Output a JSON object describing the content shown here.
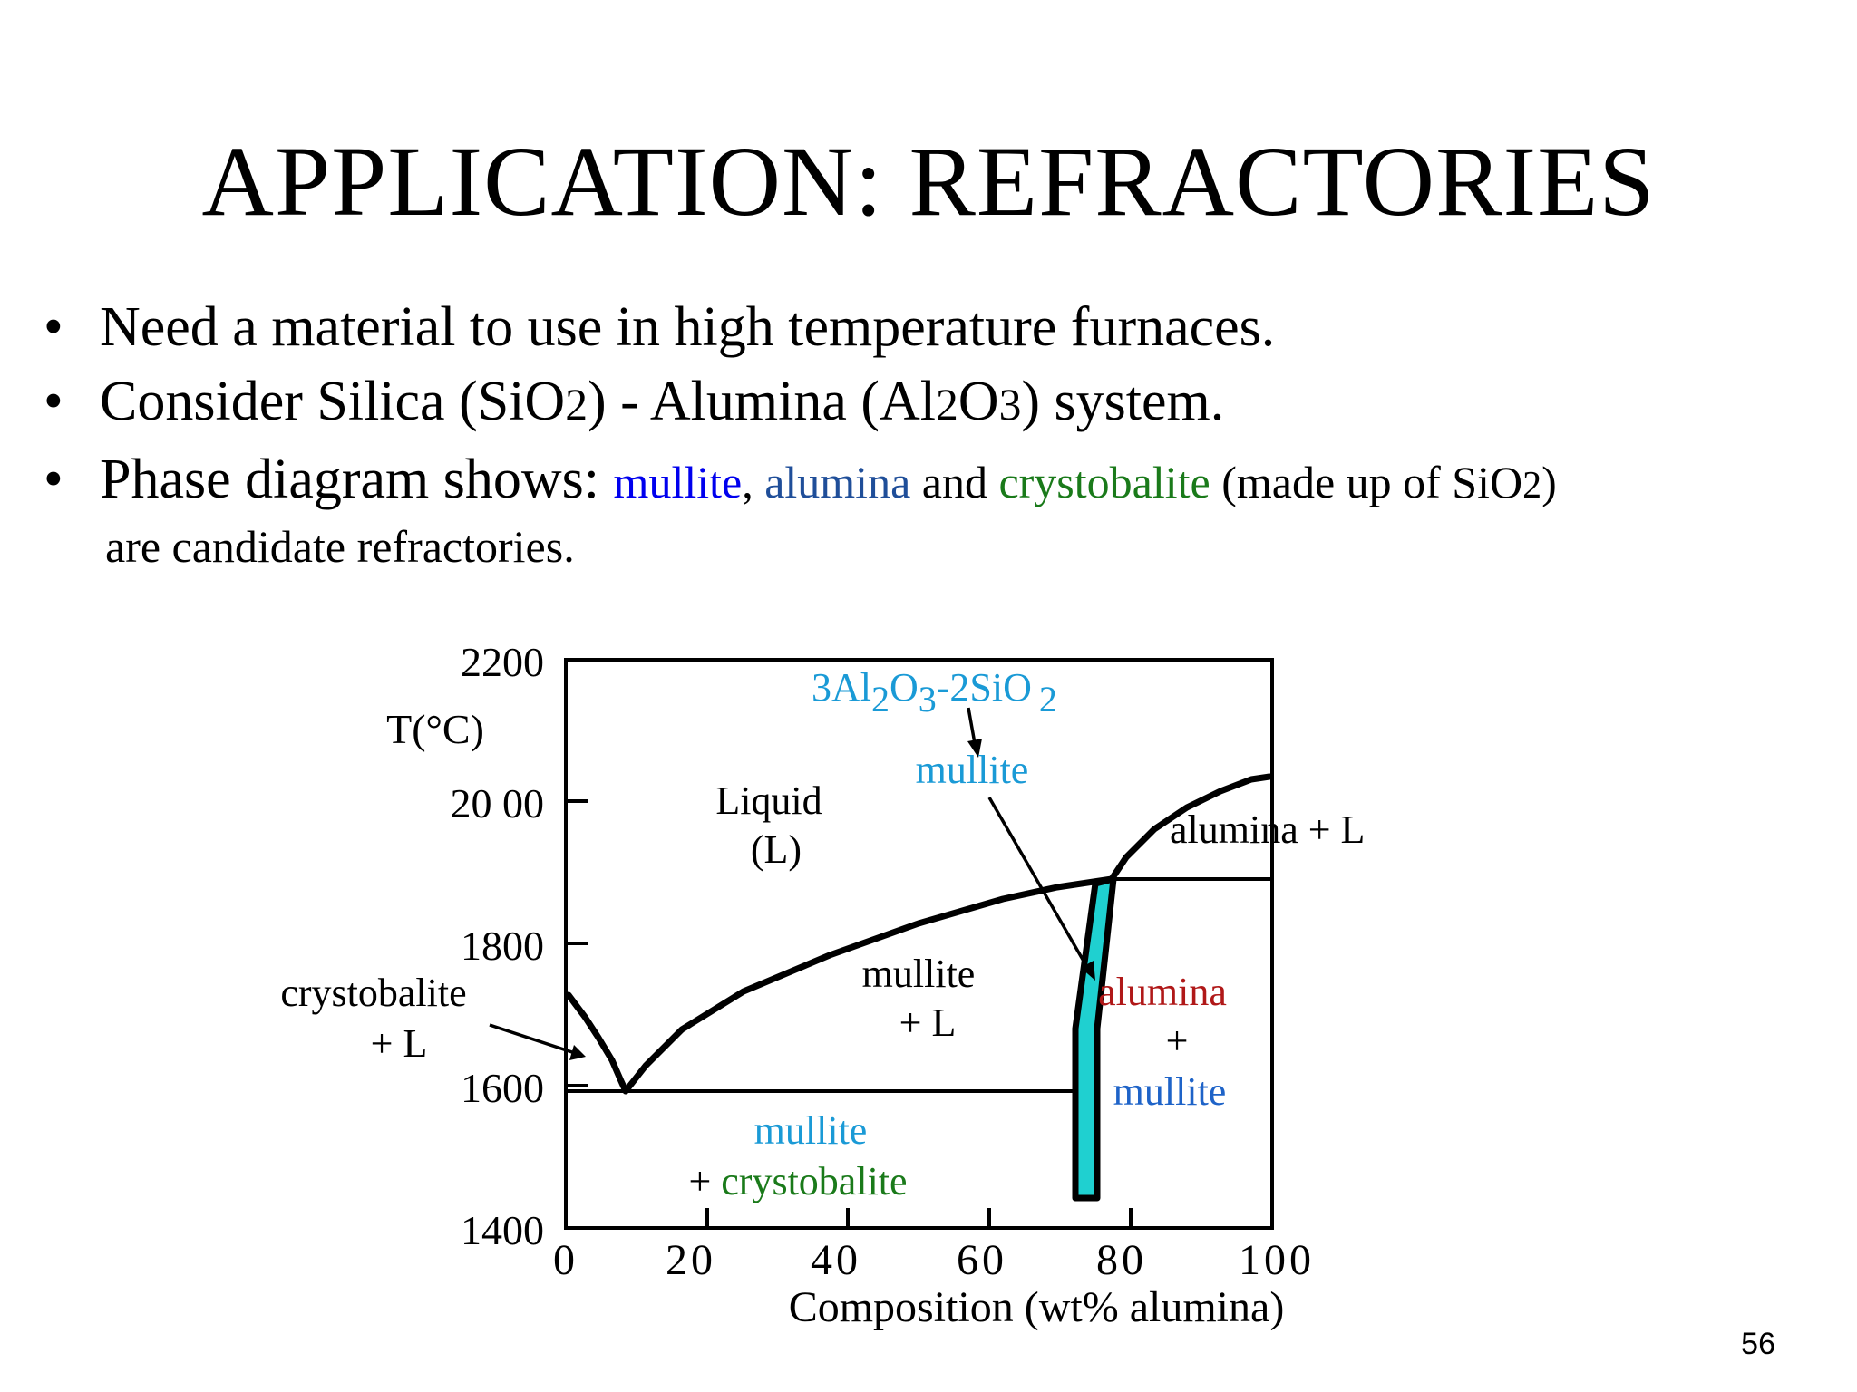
{
  "slide": {
    "title": "APPLICATION:  REFRACTORIES",
    "page_number": "56",
    "bullet_symbol": "•",
    "bullet1": "Need a material to use in high temperature furnaces.",
    "bullet2": {
      "p1": "Consider Silica (SiO",
      "s1": "2",
      "p2": ") - Alumina (Al",
      "s2": "2",
      "p3": "O",
      "s3": "3",
      "p4": ") system."
    },
    "bullet3": {
      "p1": "Phase diagram shows: ",
      "mullite": "mullite",
      "comma": ", ",
      "alumina": "alumina",
      "and": " and ",
      "crystobalite": "crystobalite",
      "p2": " (made up of SiO",
      "s1": "2",
      "p3": ")",
      "cont": "are candidate refractories."
    }
  },
  "colors": {
    "mullite_label": "#0000ee",
    "alumina_label": "#1f4e99",
    "crystobalite_label": "#1a7a1a",
    "diagram_cyan": "#1a9ad6",
    "diagram_blue": "#1e63c8",
    "diagram_red": "#b01818",
    "mullite_region_fill": "#1fd0d0"
  },
  "chart_data": {
    "type": "phase-diagram",
    "xlabel": "Composition (wt% alumina)",
    "ylabel": "T(°C)",
    "xlim": [
      0,
      100
    ],
    "ylim": [
      1400,
      2200
    ],
    "x_ticks": [
      "0",
      "20",
      "40",
      "60",
      "80",
      "100"
    ],
    "y_ticks": [
      "2200",
      "20 00",
      "1800",
      "1600",
      "1400"
    ],
    "phase_boundaries": {
      "crystobalite_liquidus": [
        [
          0,
          1732
        ],
        [
          3,
          1700
        ],
        [
          6,
          1650
        ],
        [
          8,
          1600
        ],
        [
          8.5,
          1587
        ]
      ],
      "mullite_liquidus": [
        [
          8.5,
          1587
        ],
        [
          11,
          1620
        ],
        [
          17,
          1672
        ],
        [
          25,
          1730
        ],
        [
          37,
          1782
        ],
        [
          50,
          1822
        ],
        [
          62,
          1855
        ],
        [
          70,
          1872
        ],
        [
          77,
          1880
        ]
      ],
      "alumina_liquidus": [
        [
          77,
          1880
        ],
        [
          79,
          1920
        ],
        [
          83,
          1965
        ],
        [
          88,
          2000
        ],
        [
          93,
          2025
        ],
        [
          97,
          2040
        ],
        [
          100,
          2042
        ]
      ],
      "eutectic_low": [
        [
          0,
          1587
        ],
        [
          72,
          1587
        ]
      ],
      "eutectic_high": [
        [
          77,
          1880
        ],
        [
          100,
          1880
        ]
      ],
      "mullite_region": [
        [
          72,
          1433
        ],
        [
          72,
          1670
        ],
        [
          75,
          1880
        ],
        [
          77,
          1880
        ],
        [
          75,
          1670
        ],
        [
          75,
          1433
        ]
      ]
    },
    "labels": {
      "formula": {
        "p1": "3Al",
        "s1": "2",
        "p2": "O",
        "s2": "3",
        "p3": "-2SiO",
        "s3": "2"
      },
      "mullite_top": "mullite",
      "liquid1": "Liquid",
      "liquid2": "(L)",
      "alumina_l": "alumina + L",
      "mullite_l1": "mullite",
      "mullite_l2": "+ L",
      "alumina_m1": "alumina",
      "alumina_m2": "+",
      "alumina_m3": "mullite",
      "crysto_l1": "crystobalite",
      "crysto_l2": "+ L",
      "mullite_c1": "mullite",
      "mullite_c2": "+ crystobalite"
    }
  }
}
